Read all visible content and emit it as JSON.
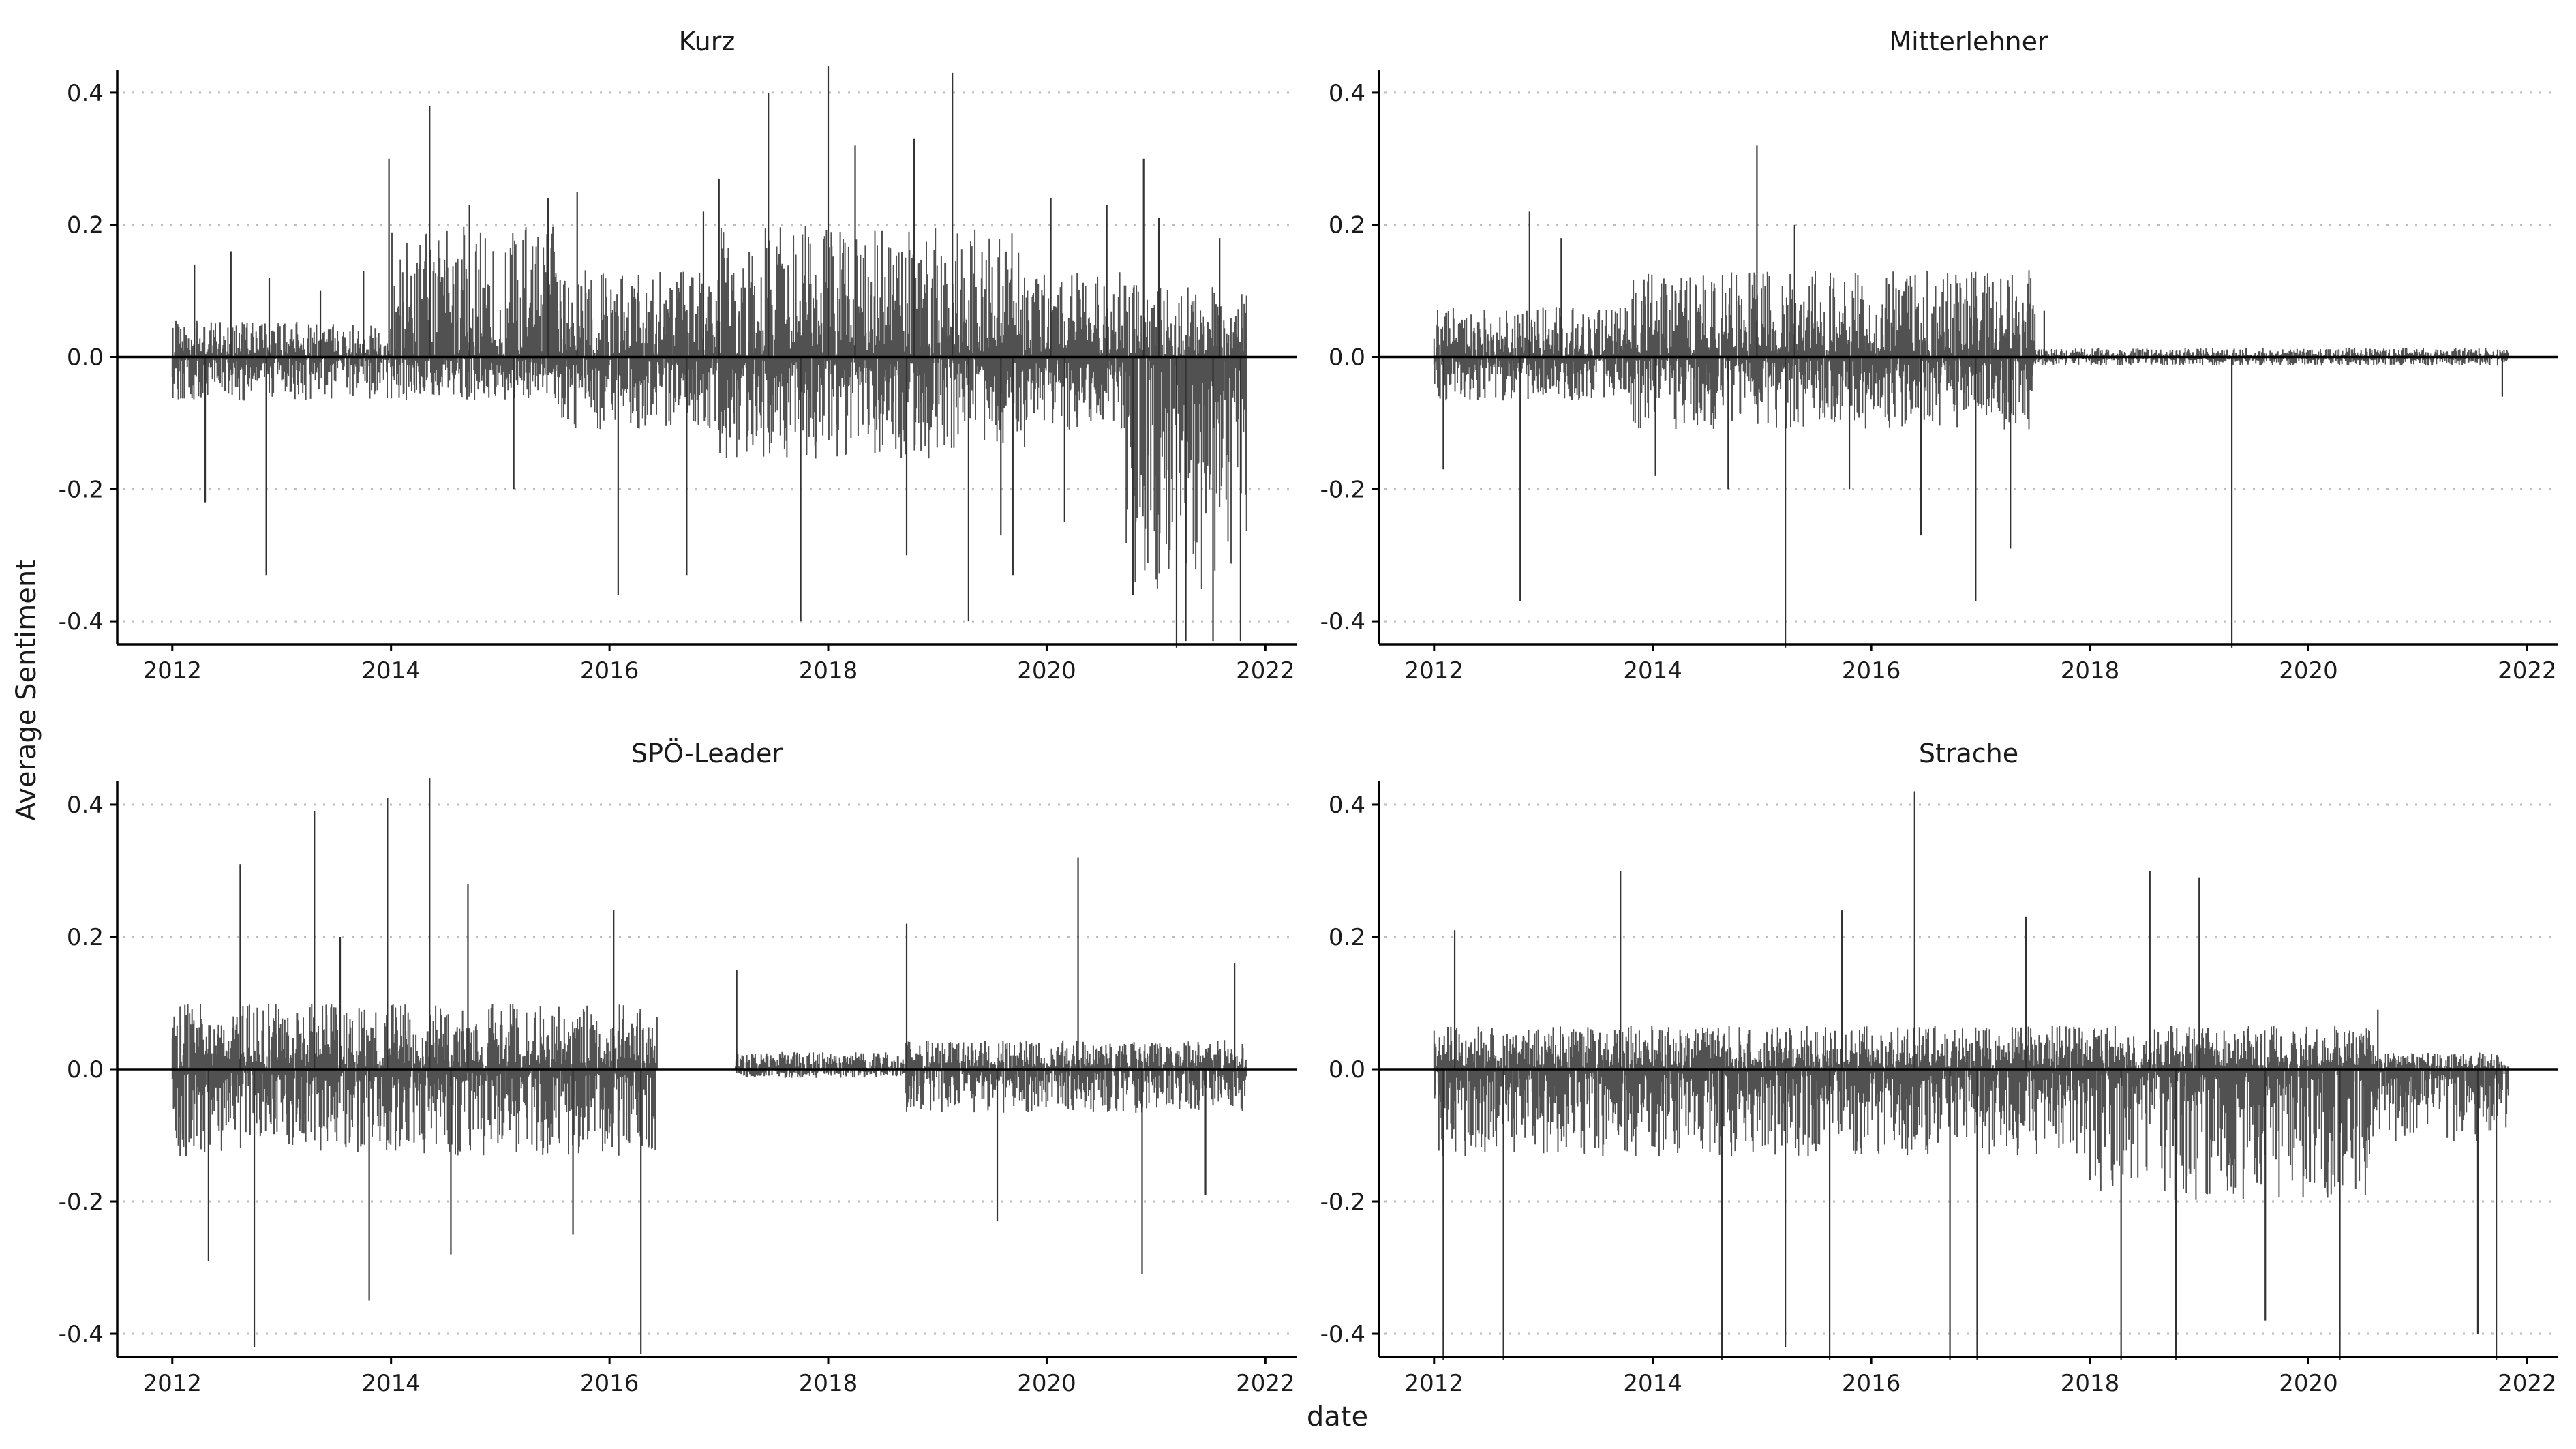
{
  "figure": {
    "ylabel": "Average Sentiment",
    "xlabel": "date",
    "grid_y_dotted": true,
    "grid_x": false,
    "colors": {
      "bar": "#333333",
      "zero_line": "#000000",
      "grid": "#bdbdbd",
      "axis": "#000000"
    }
  },
  "chart_data": [
    {
      "type": "bar",
      "panel": "Kurz",
      "title": "Kurz",
      "xlim": [
        "2011-07-01",
        "2022-04-15"
      ],
      "ylim": [
        -0.435,
        0.435
      ],
      "x_ticks": [
        "2012",
        "2014",
        "2016",
        "2018",
        "2020",
        "2022"
      ],
      "y_ticks": [
        "-0.4",
        "-0.2",
        "0.0",
        "0.2",
        "0.4"
      ],
      "date_range": [
        "2012-01-01",
        "2021-10-31"
      ],
      "series": [
        {
          "values": [
            {
              "x": "2012-03-15",
              "y": 0.14
            },
            {
              "x": "2012-04-20",
              "y": -0.22
            },
            {
              "x": "2012-07-15",
              "y": 0.16
            },
            {
              "x": "2012-11-10",
              "y": -0.33
            },
            {
              "x": "2012-11-20",
              "y": 0.12
            },
            {
              "x": "2013-05-10",
              "y": 0.1
            },
            {
              "x": "2013-10-01",
              "y": 0.13
            },
            {
              "x": "2013-12-25",
              "y": 0.3
            },
            {
              "x": "2014-05-10",
              "y": 0.38
            },
            {
              "x": "2014-09-20",
              "y": 0.23
            },
            {
              "x": "2015-02-15",
              "y": -0.2
            },
            {
              "x": "2015-06-10",
              "y": 0.24
            },
            {
              "x": "2015-09-15",
              "y": 0.25
            },
            {
              "x": "2016-01-30",
              "y": -0.36
            },
            {
              "x": "2016-09-15",
              "y": -0.33
            },
            {
              "x": "2016-11-10",
              "y": 0.22
            },
            {
              "x": "2017-01-01",
              "y": 0.27
            },
            {
              "x": "2017-06-15",
              "y": 0.4
            },
            {
              "x": "2017-10-01",
              "y": -0.4
            },
            {
              "x": "2018-01-01",
              "y": 0.44
            },
            {
              "x": "2018-04-01",
              "y": 0.32
            },
            {
              "x": "2018-09-20",
              "y": -0.3
            },
            {
              "x": "2018-10-15",
              "y": 0.33
            },
            {
              "x": "2019-02-20",
              "y": 0.43
            },
            {
              "x": "2019-04-15",
              "y": -0.4
            },
            {
              "x": "2019-08-01",
              "y": -0.27
            },
            {
              "x": "2019-09-10",
              "y": -0.33
            },
            {
              "x": "2020-01-15",
              "y": 0.24
            },
            {
              "x": "2020-03-01",
              "y": -0.25
            },
            {
              "x": "2020-07-20",
              "y": 0.23
            },
            {
              "x": "2020-10-15",
              "y": -0.36
            },
            {
              "x": "2020-11-20",
              "y": 0.3
            },
            {
              "x": "2021-01-10",
              "y": 0.21
            },
            {
              "x": "2021-03-10",
              "y": -0.44
            },
            {
              "x": "2021-04-10",
              "y": -0.43
            },
            {
              "x": "2021-07-10",
              "y": -0.43
            },
            {
              "x": "2021-08-01",
              "y": 0.18
            },
            {
              "x": "2021-10-10",
              "y": -0.43
            }
          ]
        }
      ]
    },
    {
      "type": "bar",
      "panel": "Mitterlehner",
      "title": "Mitterlehner",
      "xlim": [
        "2011-07-01",
        "2022-04-15"
      ],
      "ylim": [
        -0.435,
        0.435
      ],
      "x_ticks": [
        "2012",
        "2014",
        "2016",
        "2018",
        "2020",
        "2022"
      ],
      "y_ticks": [
        "-0.4",
        "-0.2",
        "0.0",
        "0.2",
        "0.4"
      ],
      "date_range": [
        "2012-01-01",
        "2021-10-31"
      ],
      "series": [
        {
          "values": [
            {
              "x": "2012-02-01",
              "y": -0.17
            },
            {
              "x": "2012-10-15",
              "y": -0.37
            },
            {
              "x": "2012-11-15",
              "y": 0.22
            },
            {
              "x": "2013-03-01",
              "y": 0.18
            },
            {
              "x": "2014-01-10",
              "y": -0.18
            },
            {
              "x": "2014-09-10",
              "y": -0.2
            },
            {
              "x": "2014-12-15",
              "y": 0.32
            },
            {
              "x": "2015-03-20",
              "y": -0.44
            },
            {
              "x": "2015-04-20",
              "y": 0.2
            },
            {
              "x": "2015-10-20",
              "y": -0.2
            },
            {
              "x": "2016-06-15",
              "y": -0.27
            },
            {
              "x": "2016-12-15",
              "y": -0.37
            },
            {
              "x": "2017-04-10",
              "y": -0.29
            },
            {
              "x": "2017-08-01",
              "y": 0.07
            },
            {
              "x": "2019-04-20",
              "y": -0.44
            },
            {
              "x": "2021-10-10",
              "y": -0.06
            }
          ]
        }
      ]
    },
    {
      "type": "bar",
      "panel": "SPÖ-Leader",
      "title": "SPÖ-Leader",
      "xlim": [
        "2011-07-01",
        "2022-04-15"
      ],
      "ylim": [
        -0.435,
        0.435
      ],
      "x_ticks": [
        "2012",
        "2014",
        "2016",
        "2018",
        "2020",
        "2022"
      ],
      "y_ticks": [
        "-0.4",
        "-0.2",
        "0.0",
        "0.2",
        "0.4"
      ],
      "date_range": [
        "2012-01-01",
        "2021-10-31"
      ],
      "gaps": [
        [
          "2016-06-10",
          "2017-02-20"
        ]
      ],
      "series": [
        {
          "values": [
            {
              "x": "2012-05-01",
              "y": -0.29
            },
            {
              "x": "2012-08-15",
              "y": 0.31
            },
            {
              "x": "2012-10-01",
              "y": -0.42
            },
            {
              "x": "2013-04-20",
              "y": 0.39
            },
            {
              "x": "2013-07-15",
              "y": 0.2
            },
            {
              "x": "2013-10-20",
              "y": -0.35
            },
            {
              "x": "2013-12-20",
              "y": 0.41
            },
            {
              "x": "2014-05-10",
              "y": 0.44
            },
            {
              "x": "2014-07-20",
              "y": -0.28
            },
            {
              "x": "2014-09-15",
              "y": 0.28
            },
            {
              "x": "2015-09-01",
              "y": -0.25
            },
            {
              "x": "2016-01-15",
              "y": 0.24
            },
            {
              "x": "2016-04-15",
              "y": -0.43
            },
            {
              "x": "2017-03-01",
              "y": 0.15
            },
            {
              "x": "2018-09-20",
              "y": 0.22
            },
            {
              "x": "2019-07-20",
              "y": -0.23
            },
            {
              "x": "2020-04-15",
              "y": 0.32
            },
            {
              "x": "2020-11-15",
              "y": -0.31
            },
            {
              "x": "2021-06-15",
              "y": -0.19
            },
            {
              "x": "2021-09-20",
              "y": 0.16
            }
          ]
        }
      ]
    },
    {
      "type": "bar",
      "panel": "Strache",
      "title": "Strache",
      "xlim": [
        "2011-07-01",
        "2022-04-15"
      ],
      "ylim": [
        -0.435,
        0.435
      ],
      "x_ticks": [
        "2012",
        "2014",
        "2016",
        "2018",
        "2020",
        "2022"
      ],
      "y_ticks": [
        "-0.4",
        "-0.2",
        "0.0",
        "0.2",
        "0.4"
      ],
      "date_range": [
        "2012-01-01",
        "2021-10-31"
      ],
      "series": [
        {
          "values": [
            {
              "x": "2012-02-01",
              "y": -0.44
            },
            {
              "x": "2012-03-10",
              "y": 0.21
            },
            {
              "x": "2012-08-20",
              "y": -0.44
            },
            {
              "x": "2013-09-15",
              "y": 0.3
            },
            {
              "x": "2014-08-20",
              "y": -0.44
            },
            {
              "x": "2015-03-20",
              "y": -0.42
            },
            {
              "x": "2015-08-15",
              "y": -0.44
            },
            {
              "x": "2015-09-25",
              "y": 0.24
            },
            {
              "x": "2016-05-25",
              "y": 0.42
            },
            {
              "x": "2016-09-20",
              "y": -0.44
            },
            {
              "x": "2016-12-20",
              "y": -0.44
            },
            {
              "x": "2017-06-01",
              "y": 0.23
            },
            {
              "x": "2018-04-15",
              "y": -0.44
            },
            {
              "x": "2018-07-20",
              "y": 0.3
            },
            {
              "x": "2018-10-15",
              "y": -0.44
            },
            {
              "x": "2019-01-01",
              "y": 0.29
            },
            {
              "x": "2019-08-10",
              "y": -0.38
            },
            {
              "x": "2020-04-15",
              "y": -0.44
            },
            {
              "x": "2020-08-20",
              "y": 0.09
            },
            {
              "x": "2021-07-20",
              "y": -0.4
            },
            {
              "x": "2021-09-20",
              "y": -0.44
            }
          ]
        }
      ]
    }
  ]
}
